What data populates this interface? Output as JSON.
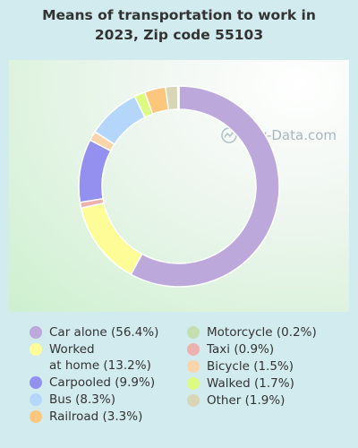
{
  "chart_data": {
    "type": "pie",
    "title_lines": [
      "Means of transportation to work in",
      "2023, Zip code 55103"
    ],
    "categories": [
      "Car alone",
      "Worked at home",
      "Carpooled",
      "Bus",
      "Railroad",
      "Walked",
      "Other",
      "Motorcycle",
      "Taxi",
      "Bicycle"
    ],
    "values": [
      56.4,
      13.2,
      9.9,
      8.3,
      3.3,
      1.7,
      1.9,
      0.2,
      0.9,
      1.5
    ],
    "slice_order": [
      "Car alone",
      "Worked at home",
      "Taxi",
      "Carpooled",
      "Bicycle",
      "Bus",
      "Walked",
      "Railroad",
      "Other",
      "Motorcycle"
    ],
    "colors": {
      "Car alone": "#bca8db",
      "Worked at home": "#fdfc97",
      "Carpooled": "#9490ef",
      "Bus": "#b4d6fa",
      "Railroad": "#fcc67c",
      "Motorcycle": "#c5deb0",
      "Taxi": "#eeb1b1",
      "Bicycle": "#fad5ab",
      "Walked": "#dcfb80",
      "Other": "#d9d6b8"
    },
    "donut": true,
    "legend_position": "bottom"
  },
  "watermark": "City-Data.com",
  "legend": {
    "left": [
      {
        "label": "Car alone (56.4%)",
        "color": "#bca8db"
      },
      {
        "label": "Worked\nat home (13.2%)",
        "color": "#fdfc97"
      },
      {
        "label": "Carpooled (9.9%)",
        "color": "#9490ef"
      },
      {
        "label": "Bus (8.3%)",
        "color": "#b4d6fa"
      },
      {
        "label": "Railroad (3.3%)",
        "color": "#fcc67c"
      }
    ],
    "right": [
      {
        "label": "Motorcycle (0.2%)",
        "color": "#c5deb0"
      },
      {
        "label": "Taxi (0.9%)",
        "color": "#eeb1b1"
      },
      {
        "label": "Bicycle (1.5%)",
        "color": "#fad5ab"
      },
      {
        "label": "Walked (1.7%)",
        "color": "#dcfb80"
      },
      {
        "label": "Other (1.9%)",
        "color": "#d9d6b8"
      }
    ]
  }
}
